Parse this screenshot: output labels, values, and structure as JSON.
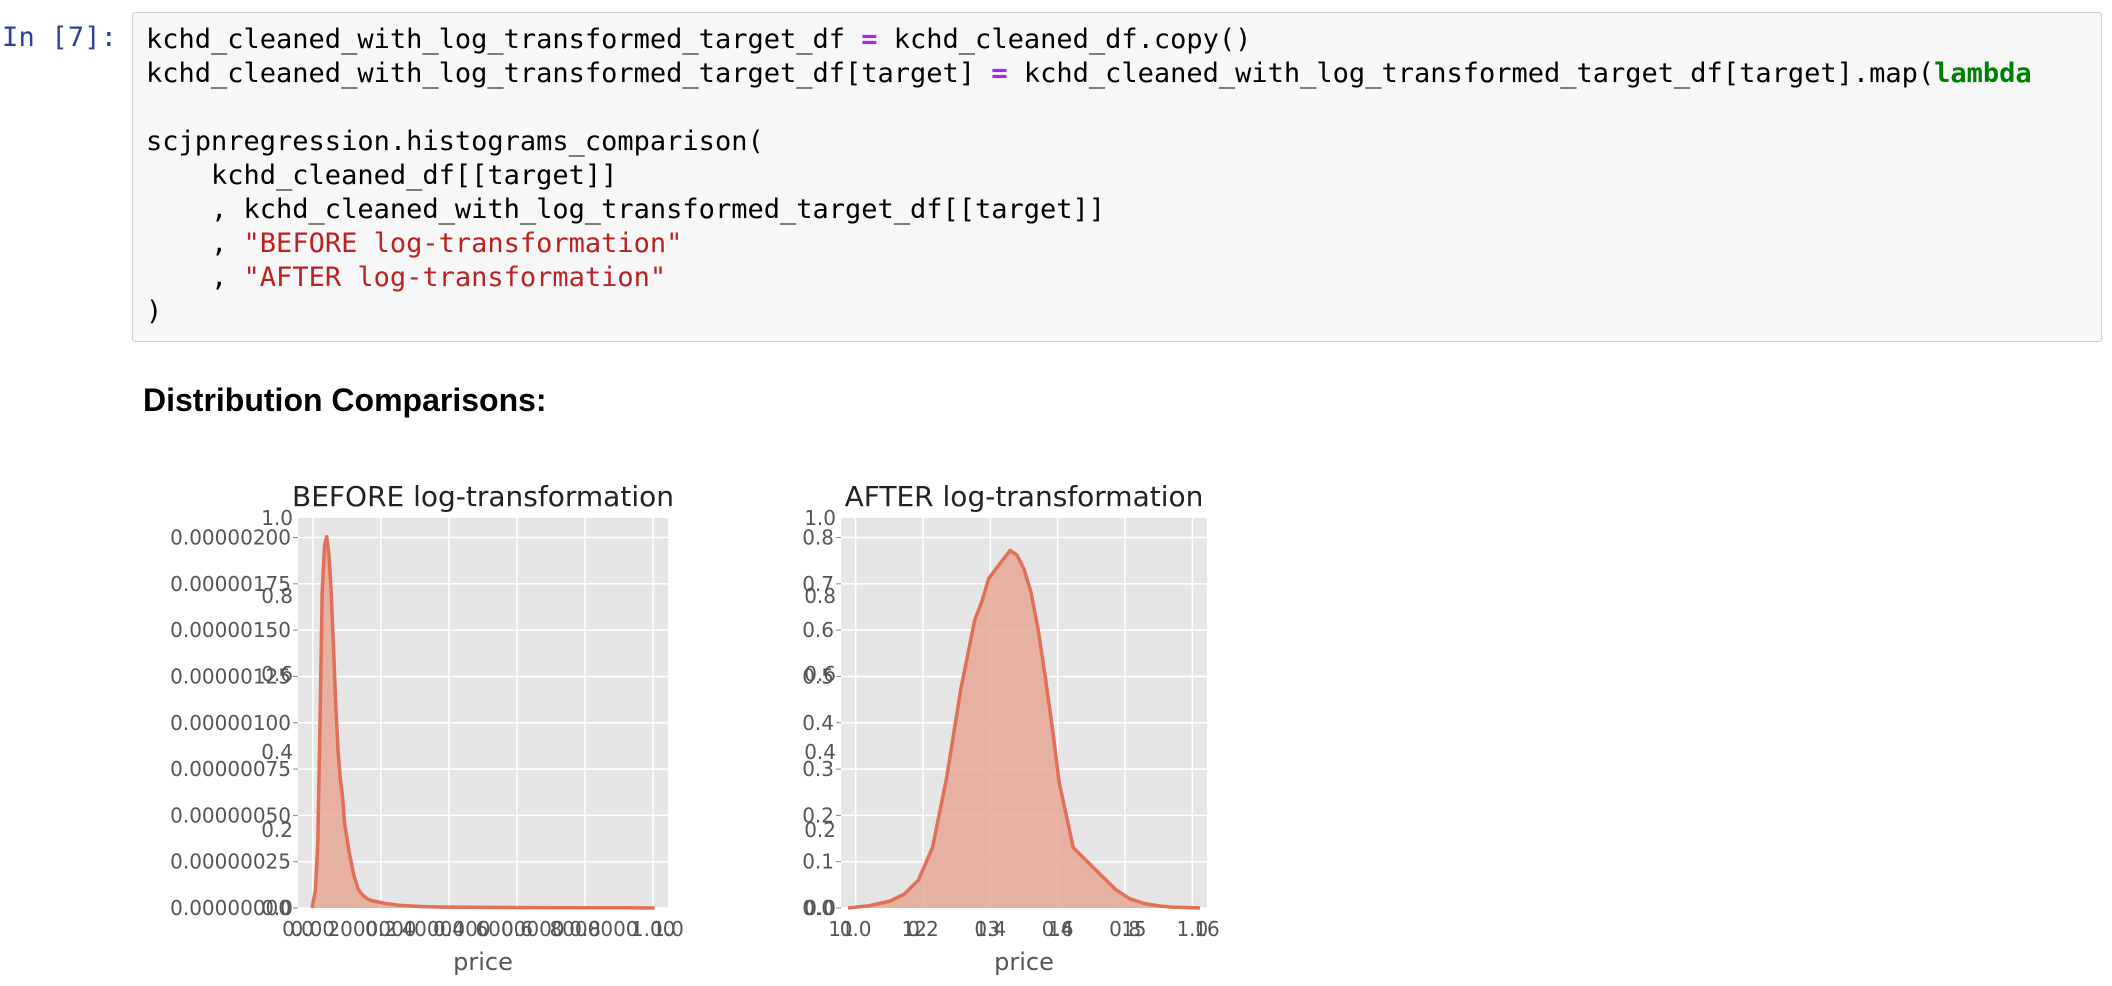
{
  "cell": {
    "prompt": "In [7]:",
    "code": {
      "line1_var": "kchd_cleaned_with_log_transformed_target_df",
      "line1_op": "=",
      "line1_rhs": "kchd_cleaned_df.copy()",
      "line2_lhs": "kchd_cleaned_with_log_transformed_target_df[target]",
      "line2_op": "=",
      "line2_rhs": "kchd_cleaned_with_log_transformed_target_df[target].map(",
      "line2_keyword": "lambda",
      "line4": "scjpnregression.histograms_comparison(",
      "line5": "    kchd_cleaned_df[[target]]",
      "line6": "    , kchd_cleaned_with_log_transformed_target_df[[target]]",
      "line7_prefix": "    , ",
      "line7_string": "\"BEFORE log-transformation\"",
      "line8_prefix": "    , ",
      "line8_string": "\"AFTER log-transformation\"",
      "line9": ")"
    }
  },
  "output": {
    "heading": "Distribution Comparisons:"
  },
  "colors": {
    "plot_bg": "#e5e5e5",
    "grid": "#ffffff",
    "bar_fill": "#e8a897",
    "curve": "#e07058",
    "tick_text": "#555555",
    "label_text": "#555555",
    "title_text": "#222222"
  },
  "chart_data": [
    {
      "type": "area",
      "title": "BEFORE log-transformation",
      "xlabel": "price",
      "ylabel": "",
      "grid": true,
      "legend": "none",
      "x_ticks": [
        "0.00",
        "0.2",
        "0.4",
        "0.6",
        "0.8",
        "1.00"
      ],
      "x_ticks_overlay": [
        "0.0",
        "2000000",
        "4000000",
        "6000000",
        "8000000",
        "1.0"
      ],
      "y_ticks": [
        "0.00000000",
        "0.00000025",
        "0.00000050",
        "0.00000075",
        "0.00000100",
        "0.00000125",
        "0.00000150",
        "0.00000175",
        "0.00000200"
      ],
      "y_ticks_overlay": [
        "0.0",
        "0.2",
        "0.4",
        "0.6",
        "0.8",
        "1.0"
      ],
      "xlim": [
        -240000,
        8000000
      ],
      "ylim": [
        0,
        2.1e-06
      ],
      "series": [
        {
          "x": [
            75000,
            150000,
            200000,
            250000,
            300000,
            350000,
            400000,
            450000,
            500000,
            550000,
            600000,
            650000,
            700000,
            750000,
            800000,
            900000,
            1000000,
            1100000,
            1200000,
            1300000,
            1400000,
            1500000,
            1700000,
            2000000,
            2500000,
            3000000,
            4000000,
            5000000,
            6000000,
            7000000,
            7700000
          ],
          "y": [
            0.0,
            1e-07,
            3.5e-07,
            1e-06,
            1.7e-06,
            1.95e-06,
            2e-06,
            1.9e-06,
            1.7e-06,
            1.4e-06,
            1.1e-06,
            8.5e-07,
            7e-07,
            6e-07,
            4.5e-07,
            3e-07,
            1.8e-07,
            1e-07,
            7e-08,
            5e-08,
            4e-08,
            3.5e-08,
            2.5e-08,
            1.5e-08,
            8e-09,
            5e-09,
            3e-09,
            2e-09,
            1e-09,
            1e-09,
            0.0
          ]
        }
      ]
    },
    {
      "type": "area",
      "title": "AFTER log-transformation",
      "xlabel": "price",
      "ylabel": "",
      "grid": true,
      "legend": "none",
      "x_ticks": [
        "0.0",
        "0.2",
        "0.4",
        "0.6",
        "0.8",
        "1.0"
      ],
      "x_ticks_overlay": [
        "11",
        "12",
        "13",
        "14",
        "15",
        "16"
      ],
      "y_ticks": [
        "0.0",
        "0.1",
        "0.2",
        "0.3",
        "0.4",
        "0.5",
        "0.6",
        "0.7",
        "0.8"
      ],
      "y_ticks_overlay": [
        "0.0",
        "0.2",
        "0.4",
        "0.6",
        "0.8",
        "1.0"
      ],
      "xlim": [
        10.9,
        16.1
      ],
      "ylim": [
        0,
        0.84
      ],
      "series": [
        {
          "x": [
            11.0,
            11.3,
            11.6,
            11.8,
            12.0,
            12.2,
            12.4,
            12.6,
            12.8,
            12.9,
            13.0,
            13.1,
            13.2,
            13.3,
            13.4,
            13.5,
            13.6,
            13.7,
            13.8,
            13.9,
            14.0,
            14.2,
            14.4,
            14.6,
            14.8,
            15.0,
            15.2,
            15.4,
            15.6,
            15.8,
            16.0
          ],
          "y": [
            0.0,
            0.005,
            0.015,
            0.03,
            0.06,
            0.13,
            0.28,
            0.47,
            0.62,
            0.66,
            0.71,
            0.73,
            0.75,
            0.77,
            0.76,
            0.73,
            0.68,
            0.6,
            0.5,
            0.39,
            0.27,
            0.13,
            0.1,
            0.07,
            0.04,
            0.02,
            0.01,
            0.005,
            0.002,
            0.001,
            0.0
          ]
        }
      ]
    }
  ]
}
